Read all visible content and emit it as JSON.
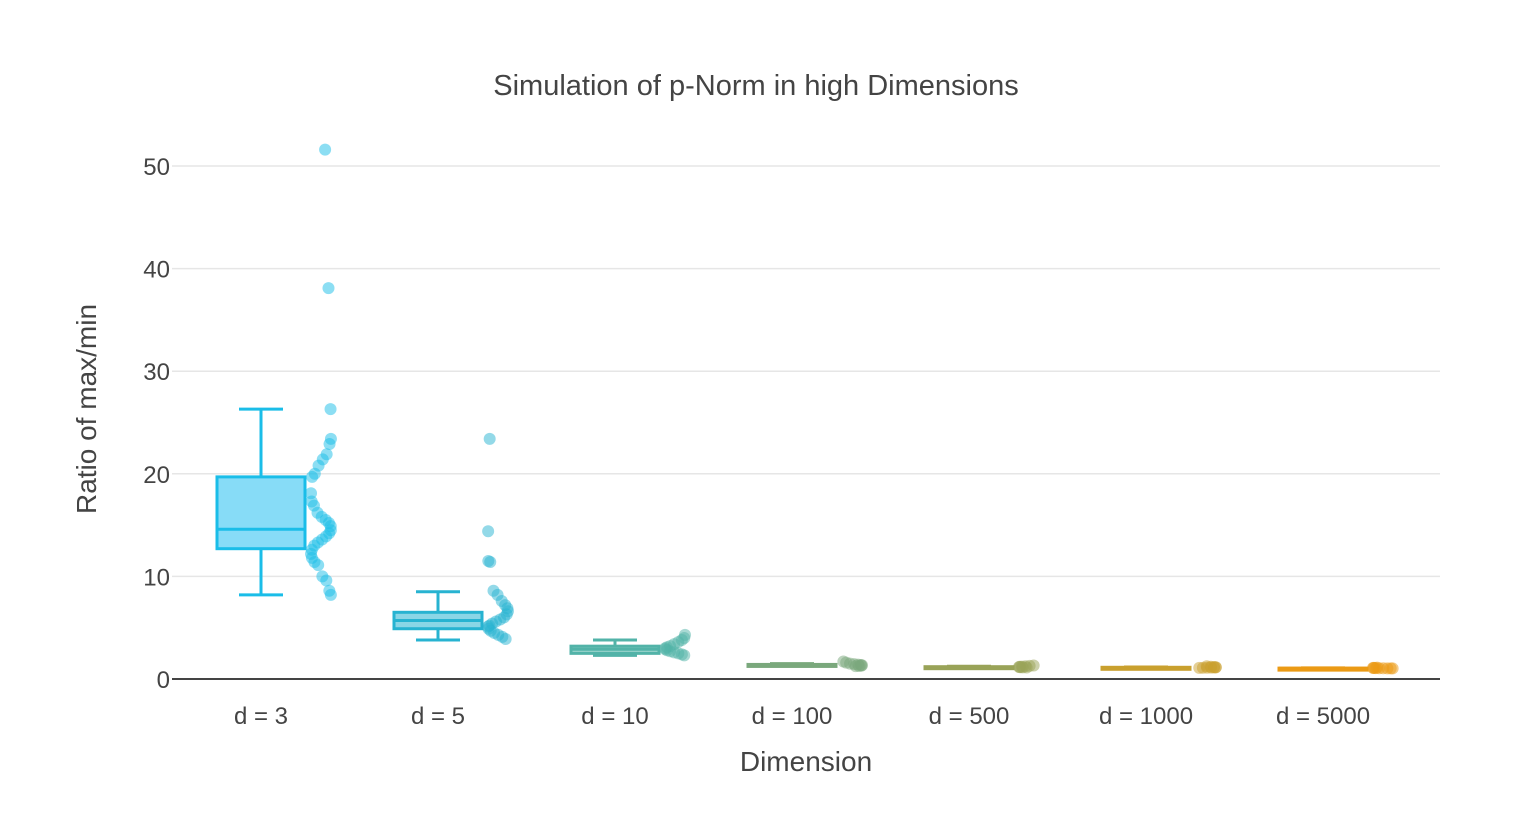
{
  "chart_data": {
    "type": "box",
    "title": "Simulation of p-Norm in high Dimensions",
    "xlabel": "Dimension",
    "ylabel": "Ratio of max/min",
    "categories": [
      "d = 3",
      "d = 5",
      "d = 10",
      "d = 100",
      "d = 500",
      "d = 1000",
      "d = 5000"
    ],
    "yticks": [
      0,
      10,
      20,
      30,
      40,
      50
    ],
    "ylim": [
      0,
      53
    ],
    "grid": true,
    "boxpoints": "all",
    "series": [
      {
        "category": "d = 3",
        "color": "#1abde8",
        "fill": "#87dcf7",
        "min": 8.2,
        "q1": 12.7,
        "median": 14.6,
        "q3": 19.7,
        "max": 26.3,
        "points": [
          51.6,
          38.1,
          26.3,
          23.4,
          22.9,
          21.9,
          21.4,
          20.8,
          20.0,
          19.7,
          18.1,
          17.3,
          16.9,
          16.2,
          15.8,
          15.5,
          15.2,
          14.9,
          14.5,
          14.2,
          13.9,
          13.6,
          13.3,
          13.0,
          12.6,
          12.2,
          11.8,
          11.4,
          11.1,
          10.0,
          9.6,
          8.6,
          8.2
        ]
      },
      {
        "category": "d = 5",
        "color": "#27b3d1",
        "fill": "#8ad6e6",
        "min": 3.8,
        "q1": 4.9,
        "median": 5.7,
        "q3": 6.5,
        "max": 8.5,
        "points": [
          23.4,
          14.4,
          11.5,
          11.4,
          8.6,
          8.2,
          7.6,
          7.2,
          6.9,
          6.6,
          6.3,
          6.0,
          5.8,
          5.6,
          5.4,
          5.2,
          5.1,
          4.9,
          4.7,
          4.5,
          4.3,
          4.1,
          3.9
        ]
      },
      {
        "category": "d = 10",
        "color": "#52b3a8",
        "fill": "#9dd6ce",
        "min": 2.3,
        "q1": 2.5,
        "median": 2.9,
        "q3": 3.2,
        "max": 3.8,
        "points": [
          4.3,
          4.0,
          3.8,
          3.6,
          3.4,
          3.2,
          3.1,
          3.0,
          2.9,
          2.8,
          2.7,
          2.6,
          2.5,
          2.4,
          2.3
        ]
      },
      {
        "category": "d = 100",
        "color": "#7aa87c",
        "fill": "#b6d1b7",
        "min": 1.25,
        "q1": 1.32,
        "median": 1.37,
        "q3": 1.42,
        "max": 1.5,
        "points": [
          1.7,
          1.6,
          1.5,
          1.45,
          1.4,
          1.37,
          1.34,
          1.3,
          1.27,
          1.25
        ]
      },
      {
        "category": "d = 500",
        "color": "#99a358",
        "fill": "#c7cd9f",
        "min": 1.12,
        "q1": 1.15,
        "median": 1.17,
        "q3": 1.2,
        "max": 1.24,
        "points": [
          1.32,
          1.28,
          1.24,
          1.21,
          1.19,
          1.17,
          1.15,
          1.13,
          1.12
        ]
      },
      {
        "category": "d = 1000",
        "color": "#c9a02e",
        "fill": "#e2cc8d",
        "min": 1.08,
        "q1": 1.1,
        "median": 1.12,
        "q3": 1.14,
        "max": 1.17,
        "points": [
          1.24,
          1.2,
          1.17,
          1.15,
          1.13,
          1.12,
          1.11,
          1.1,
          1.09,
          1.08
        ]
      },
      {
        "category": "d = 5000",
        "color": "#eb9a14",
        "fill": "#f5c97f",
        "min": 1.03,
        "q1": 1.04,
        "median": 1.05,
        "q3": 1.06,
        "max": 1.08,
        "points": [
          1.11,
          1.09,
          1.08,
          1.07,
          1.06,
          1.05,
          1.045,
          1.04,
          1.035,
          1.03
        ]
      }
    ]
  }
}
